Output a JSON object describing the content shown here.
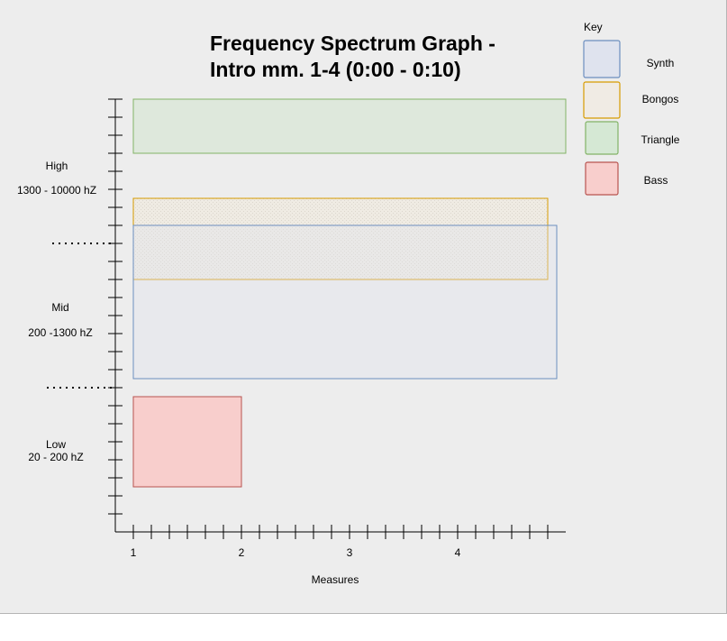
{
  "title_line1": "Frequency Spectrum Graph -",
  "title_line2": "Intro mm. 1-4 (0:00 - 0:10)",
  "key": {
    "heading": "Key",
    "items": [
      {
        "label": "Synth",
        "fill": "#dfe3ee",
        "stroke": "#6c8ebf"
      },
      {
        "label": "Bongos",
        "fill": "#f0ebe4",
        "stroke": "#d79b00"
      },
      {
        "label": "Triangle",
        "fill": "#d5e8d4",
        "stroke": "#82b366"
      },
      {
        "label": "Bass",
        "fill": "#f8cecc",
        "stroke": "#b85450"
      }
    ]
  },
  "y_labels": {
    "high": "High",
    "high_range": "1300 - 10000 hZ",
    "mid": "Mid",
    "mid_range": "200 -1300 hZ",
    "low": "Low",
    "low_range": "20 - 200 hZ"
  },
  "x_axis": {
    "label": "Measures",
    "ticks": [
      "1",
      "2",
      "3",
      "4"
    ]
  },
  "chart_data": {
    "type": "range-bars",
    "x_unit": "measure",
    "bands": [
      "Low",
      "Mid",
      "High"
    ],
    "series": [
      {
        "name": "Triangle",
        "x_start": 1,
        "x_end": 5,
        "band": "High",
        "band_from": 0.05,
        "band_to": 0.65
      },
      {
        "name": "Bongos",
        "x_start": 1,
        "x_end": 4.83,
        "band": "High-Mid",
        "band_from": 0.55,
        "band_to": 0.5
      },
      {
        "name": "Synth",
        "x_start": 1,
        "x_end": 4.92,
        "band": "High-Mid",
        "band_from": 0.85,
        "band_to": 1.0
      },
      {
        "name": "Bass",
        "x_start": 1,
        "x_end": 2,
        "band": "Low",
        "band_from": 0.05,
        "band_to": 0.55
      }
    ]
  }
}
